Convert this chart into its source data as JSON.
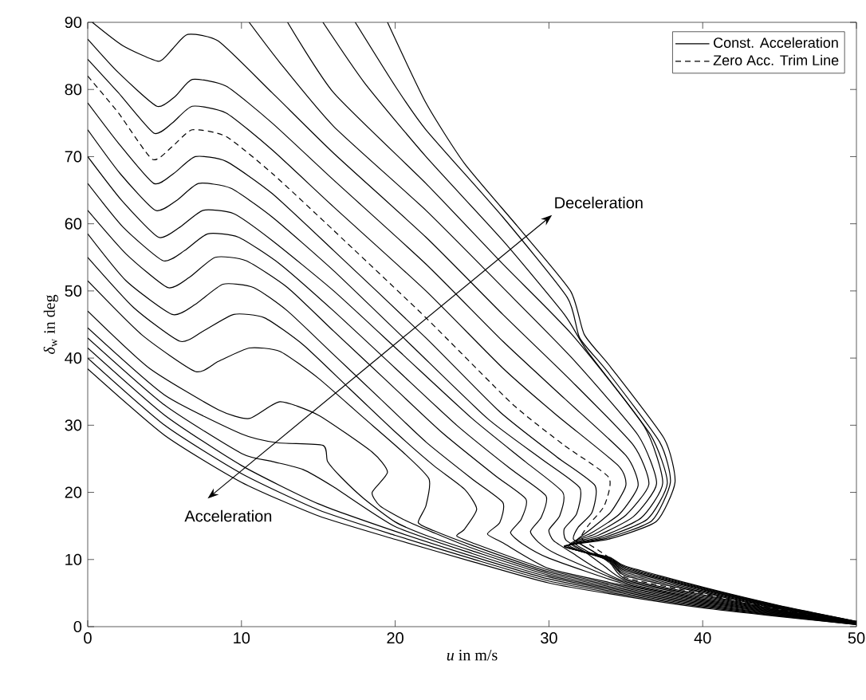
{
  "chart_data": {
    "type": "line",
    "xlabel": "*u* in m/s",
    "ylabel": "*δ*$_{w}$ in deg",
    "xlim": [
      0,
      50
    ],
    "ylim": [
      0,
      90
    ],
    "xticks": [
      0,
      10,
      20,
      30,
      40,
      50
    ],
    "yticks": [
      0,
      10,
      20,
      30,
      40,
      50,
      60,
      70,
      80,
      90
    ],
    "legend": "top right",
    "annotations": [
      "Deceleration",
      "Acceleration"
    ],
    "series": [
      {
        "name": "Const. Acceleration",
        "color": "#000000",
        "x": [
          0,
          5,
          10,
          15,
          20,
          25,
          30,
          35,
          40,
          45,
          50
        ],
        "values": [
          38.4,
          28.5,
          21.5,
          16.5,
          13,
          9.7,
          6.5,
          4.5,
          2.8,
          1.5,
          0.3
        ]
      },
      {
        "color": "#000000",
        "x": [
          0,
          5,
          10,
          15,
          20,
          25,
          30,
          35,
          40,
          45,
          50
        ],
        "values": [
          40,
          30,
          22.8,
          17.4,
          13.6,
          10.1,
          6.8,
          4.7,
          2.95,
          1.58,
          0.32
        ]
      },
      {
        "color": "#000000",
        "x": [
          0,
          5,
          10,
          15,
          20,
          25,
          30,
          35,
          40,
          45,
          50
        ],
        "values": [
          41.5,
          31.5,
          24,
          18.3,
          14.2,
          10.5,
          7.1,
          4.9,
          3.1,
          1.65,
          0.35
        ]
      },
      {
        "color": "#000000",
        "x": [
          0,
          5,
          10,
          12,
          14,
          16,
          20,
          25,
          30,
          35,
          40,
          45,
          50
        ],
        "values": [
          43,
          33,
          25.8,
          24.6,
          23.4,
          20.8,
          14.9,
          10.9,
          7.4,
          5.1,
          3.25,
          1.73,
          0.37
        ]
      },
      {
        "color": "#000000",
        "x": [
          0,
          5,
          10,
          12.3,
          15.3,
          15.6,
          16.5,
          18,
          20,
          22,
          25,
          30,
          35,
          40,
          45,
          50
        ],
        "values": [
          44.5,
          34.5,
          28.7,
          27.4,
          27,
          24.6,
          22.2,
          19,
          15.6,
          13.6,
          11.3,
          7.65,
          5.3,
          3.4,
          1.8,
          0.39
        ]
      },
      {
        "color": "#000000",
        "x": [
          0,
          4,
          8.5,
          10.5,
          12.5,
          15,
          18.5,
          19.5,
          18.5,
          19,
          20.5,
          22.5,
          25,
          30,
          35,
          40,
          45,
          50
        ],
        "values": [
          47,
          38.5,
          32.3,
          31,
          33.5,
          31.5,
          26,
          23,
          20,
          18,
          16,
          14,
          11.7,
          7.9,
          5.5,
          3.55,
          1.88,
          0.41
        ]
      },
      {
        "color": "#000000",
        "x": [
          0,
          3.5,
          7,
          8.5,
          10.5,
          12.5,
          15,
          18,
          20.5,
          22.2,
          22,
          21.5,
          22.5,
          25,
          30,
          35,
          40,
          45,
          50
        ],
        "values": [
          51.5,
          43.5,
          38,
          39.5,
          41.5,
          41,
          37,
          31,
          26,
          22,
          18,
          15.5,
          14.3,
          12.1,
          8.15,
          5.7,
          3.7,
          1.95,
          0.44
        ]
      },
      {
        "color": "#000000",
        "x": [
          0,
          3,
          6,
          7.5,
          9.5,
          11.5,
          14,
          17,
          20,
          22.5,
          24.5,
          25.3,
          24.5,
          24,
          25,
          30,
          35,
          40,
          45,
          50
        ],
        "values": [
          55,
          47.5,
          42.5,
          44,
          46.5,
          46,
          42,
          35.5,
          29,
          24,
          20.5,
          17.5,
          14.5,
          13.5,
          12.5,
          8.4,
          5.9,
          3.85,
          2.03,
          0.46
        ]
      },
      {
        "color": "#000000",
        "x": [
          0,
          2.5,
          5.5,
          7,
          8.8,
          10.8,
          13,
          16,
          19,
          22,
          25,
          27,
          26.8,
          26,
          27,
          30,
          35,
          40,
          45,
          50
        ],
        "values": [
          58.5,
          51.5,
          46.5,
          48,
          51,
          50.5,
          47,
          40.5,
          34,
          27.5,
          22,
          18.5,
          15.5,
          13.8,
          12.5,
          8.65,
          6.1,
          4,
          2.1,
          0.48
        ]
      },
      {
        "color": "#000000",
        "x": [
          0,
          2.5,
          5.2,
          6.6,
          8.3,
          10.3,
          13,
          16,
          19.5,
          23,
          26.5,
          28.5,
          28.2,
          27.5,
          28.3,
          30,
          35,
          40,
          45,
          50
        ],
        "values": [
          62,
          55.5,
          50.5,
          52,
          55,
          54.5,
          50.5,
          44,
          36.5,
          29,
          22.5,
          19,
          16,
          14,
          12.3,
          10.2,
          6.3,
          4.15,
          2.18,
          0.5
        ]
      },
      {
        "color": "#000000",
        "x": [
          0,
          2.3,
          4.9,
          6.3,
          7.8,
          9.8,
          12.5,
          16,
          20,
          24,
          27.5,
          29.8,
          29.5,
          28.8,
          29.3,
          30.5,
          35,
          40,
          45,
          50
        ],
        "values": [
          66,
          59.5,
          54.5,
          56,
          58.5,
          58,
          54,
          47,
          38.5,
          30,
          23.5,
          19.5,
          16.3,
          14.2,
          12.6,
          10.8,
          6.5,
          4.3,
          2.25,
          0.53
        ]
      },
      {
        "color": "#000000",
        "x": [
          0,
          2.2,
          4.6,
          6,
          7.5,
          9.5,
          12,
          16,
          20.5,
          25,
          28.5,
          30.9,
          30.7,
          30,
          30.3,
          31.5,
          33,
          35,
          40,
          45,
          50
        ],
        "values": [
          70,
          63.5,
          58,
          59.5,
          62,
          61.5,
          57.5,
          50,
          40.5,
          31,
          24.5,
          20,
          16.5,
          14.4,
          12.8,
          11,
          8.8,
          6.7,
          4.45,
          2.33,
          0.55
        ]
      },
      {
        "color": "#000000",
        "x": [
          0,
          2.1,
          4.4,
          5.8,
          7.2,
          9.3,
          12,
          16,
          21,
          26,
          29.5,
          32,
          31.8,
          31,
          31.1,
          32.3,
          33.5,
          35,
          40,
          45,
          50
        ],
        "values": [
          74,
          67.5,
          62,
          63.5,
          66,
          65.3,
          61,
          53,
          42,
          31,
          25,
          20.7,
          16.8,
          14.6,
          12.9,
          11.2,
          9.2,
          6.9,
          4.6,
          2.4,
          0.57
        ]
      },
      {
        "color": "#000000",
        "x": [
          0,
          2,
          4.3,
          5.6,
          7,
          9,
          12,
          16,
          22,
          26.8,
          30.5,
          33,
          32.8,
          31.9,
          31.6,
          32.8,
          34,
          35,
          40,
          45,
          50
        ],
        "values": [
          78,
          72,
          66,
          67.5,
          70,
          69.3,
          64.5,
          56,
          43,
          32,
          25.3,
          21,
          17,
          14.8,
          13,
          11.3,
          9.4,
          7.1,
          4.75,
          2.48,
          0.59
        ]
      },
      {
        "name": "Zero Acc. Trim Line",
        "color": "#000000",
        "line_style": "dashed",
        "x": [
          0,
          2,
          4.2,
          5.5,
          6.8,
          9,
          12,
          16,
          22,
          27.6,
          31,
          33.9,
          33.6,
          32.6,
          32.1,
          33.2,
          34.3,
          35,
          40,
          45,
          50
        ],
        "values": [
          82,
          76.5,
          69.6,
          71.5,
          74,
          73,
          67.5,
          59,
          46,
          33.2,
          27,
          22.2,
          18,
          15.2,
          13.2,
          11.4,
          9.6,
          7.3,
          4.9,
          2.55,
          0.62
        ]
      },
      {
        "color": "#000000",
        "x": [
          0,
          2,
          4.3,
          5.5,
          6.8,
          9,
          12,
          16,
          22,
          27,
          30.5,
          34.5,
          35,
          34,
          32.6,
          31.8,
          32.8,
          34,
          35,
          40,
          45,
          50
        ],
        "values": [
          84.5,
          79.5,
          73.5,
          75,
          77.5,
          76.5,
          71,
          62.5,
          50,
          38.5,
          31.5,
          24,
          21,
          17,
          14.3,
          12.8,
          11.3,
          9.6,
          7.55,
          5.05,
          2.63,
          0.64
        ]
      },
      {
        "color": "#000000",
        "x": [
          0,
          2,
          4.5,
          5.7,
          6.8,
          9,
          12,
          16,
          22,
          27,
          31,
          35,
          35.8,
          34.6,
          32.8,
          31.6,
          32.6,
          34,
          35,
          40,
          45,
          50
        ],
        "values": [
          87.5,
          82.5,
          77.5,
          79,
          81.5,
          80.5,
          75,
          66.5,
          54,
          42.5,
          34,
          25.5,
          21,
          16.8,
          14,
          12.6,
          11.1,
          9.7,
          7.8,
          5.2,
          2.7,
          0.66
        ]
      },
      {
        "color": "#000000",
        "x": [
          0.3,
          2.3,
          4.6,
          5.5,
          6.5,
          8.5,
          12,
          16,
          22,
          27,
          31.5,
          35.5,
          36.5,
          35,
          33,
          31.4,
          32.5,
          34,
          35,
          40,
          45,
          50
        ],
        "values": [
          90,
          86.5,
          84.2,
          86,
          88.2,
          87.2,
          79.5,
          70.5,
          58,
          46.5,
          36.5,
          27,
          21.2,
          16.6,
          13.8,
          12.4,
          11,
          9.8,
          8.05,
          5.35,
          2.78,
          0.68
        ]
      },
      {
        "color": "#000000",
        "x": [
          10.5,
          12.5,
          16,
          22,
          27,
          31.5,
          35.8,
          37,
          35.5,
          33.2,
          31.3,
          32.5,
          34,
          35,
          40,
          45,
          50
        ],
        "values": [
          90,
          84,
          74.5,
          62,
          50.5,
          40,
          28.5,
          21.3,
          16.4,
          13.6,
          12.2,
          10.95,
          9.9,
          8.3,
          5.5,
          2.85,
          0.71
        ]
      },
      {
        "color": "#000000",
        "x": [
          13,
          16,
          22,
          27,
          31.5,
          36.2,
          37.4,
          36,
          33.4,
          31.2,
          32.5,
          34,
          35,
          40,
          45,
          50
        ],
        "values": [
          90,
          79.5,
          66,
          54,
          43.5,
          29.8,
          21.4,
          16.2,
          13.4,
          12.1,
          10.9,
          10,
          8.5,
          5.6,
          2.93,
          0.73
        ]
      },
      {
        "color": "#000000",
        "x": [
          15.3,
          18,
          22,
          27,
          31,
          32.5,
          36.6,
          37.7,
          36.4,
          33.6,
          31.1,
          32.6,
          34,
          35,
          40,
          45,
          50
        ],
        "values": [
          90,
          81,
          70,
          57.5,
          46.5,
          41,
          28.6,
          21.4,
          16,
          13.3,
          12,
          10.9,
          10.1,
          8.7,
          5.7,
          3,
          0.75
        ]
      },
      {
        "color": "#000000",
        "x": [
          17.4,
          20,
          22,
          27,
          31.2,
          32,
          33.8,
          37.2,
          37.9,
          36.7,
          33.8,
          31,
          32.6,
          34,
          35,
          40,
          45,
          50
        ],
        "values": [
          90,
          80.5,
          74,
          61,
          49,
          43,
          38,
          27.5,
          21.5,
          15.8,
          13.2,
          12,
          10.95,
          10.2,
          8.85,
          5.8,
          3.08,
          0.77
        ]
      },
      {
        "color": "#000000",
        "x": [
          19.5,
          22,
          24.5,
          28,
          31.4,
          32.3,
          34,
          37.5,
          38.2,
          37,
          34,
          31,
          32.6,
          34,
          35,
          40,
          45,
          50
        ],
        "values": [
          90,
          78,
          69,
          59.5,
          50,
          43.5,
          38.7,
          28,
          21.5,
          15.7,
          13.1,
          12,
          11,
          10.3,
          9,
          5.9,
          3.15,
          0.8
        ]
      }
    ]
  }
}
